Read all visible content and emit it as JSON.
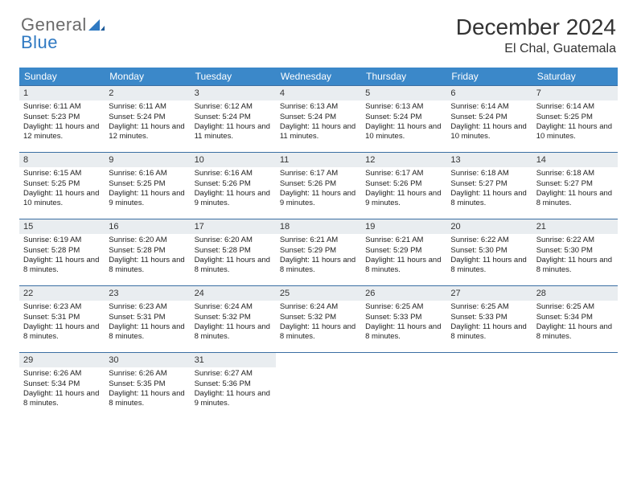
{
  "logo": {
    "line1": "General",
    "line2": "Blue"
  },
  "title": "December 2024",
  "location": "El Chal, Guatemala",
  "colors": {
    "header_bg": "#3b88c9",
    "header_text": "#ffffff",
    "daynum_bg": "#e9edf0",
    "week_border": "#3b6fa3",
    "text": "#222222",
    "logo_blue": "#2f79c2",
    "logo_gray": "#6b6b6b"
  },
  "days_of_week": [
    "Sunday",
    "Monday",
    "Tuesday",
    "Wednesday",
    "Thursday",
    "Friday",
    "Saturday"
  ],
  "weeks": [
    [
      {
        "n": "1",
        "sr": "6:11 AM",
        "ss": "5:23 PM",
        "dl": "11 hours and 12 minutes."
      },
      {
        "n": "2",
        "sr": "6:11 AM",
        "ss": "5:24 PM",
        "dl": "11 hours and 12 minutes."
      },
      {
        "n": "3",
        "sr": "6:12 AM",
        "ss": "5:24 PM",
        "dl": "11 hours and 11 minutes."
      },
      {
        "n": "4",
        "sr": "6:13 AM",
        "ss": "5:24 PM",
        "dl": "11 hours and 11 minutes."
      },
      {
        "n": "5",
        "sr": "6:13 AM",
        "ss": "5:24 PM",
        "dl": "11 hours and 10 minutes."
      },
      {
        "n": "6",
        "sr": "6:14 AM",
        "ss": "5:24 PM",
        "dl": "11 hours and 10 minutes."
      },
      {
        "n": "7",
        "sr": "6:14 AM",
        "ss": "5:25 PM",
        "dl": "11 hours and 10 minutes."
      }
    ],
    [
      {
        "n": "8",
        "sr": "6:15 AM",
        "ss": "5:25 PM",
        "dl": "11 hours and 10 minutes."
      },
      {
        "n": "9",
        "sr": "6:16 AM",
        "ss": "5:25 PM",
        "dl": "11 hours and 9 minutes."
      },
      {
        "n": "10",
        "sr": "6:16 AM",
        "ss": "5:26 PM",
        "dl": "11 hours and 9 minutes."
      },
      {
        "n": "11",
        "sr": "6:17 AM",
        "ss": "5:26 PM",
        "dl": "11 hours and 9 minutes."
      },
      {
        "n": "12",
        "sr": "6:17 AM",
        "ss": "5:26 PM",
        "dl": "11 hours and 9 minutes."
      },
      {
        "n": "13",
        "sr": "6:18 AM",
        "ss": "5:27 PM",
        "dl": "11 hours and 8 minutes."
      },
      {
        "n": "14",
        "sr": "6:18 AM",
        "ss": "5:27 PM",
        "dl": "11 hours and 8 minutes."
      }
    ],
    [
      {
        "n": "15",
        "sr": "6:19 AM",
        "ss": "5:28 PM",
        "dl": "11 hours and 8 minutes."
      },
      {
        "n": "16",
        "sr": "6:20 AM",
        "ss": "5:28 PM",
        "dl": "11 hours and 8 minutes."
      },
      {
        "n": "17",
        "sr": "6:20 AM",
        "ss": "5:28 PM",
        "dl": "11 hours and 8 minutes."
      },
      {
        "n": "18",
        "sr": "6:21 AM",
        "ss": "5:29 PM",
        "dl": "11 hours and 8 minutes."
      },
      {
        "n": "19",
        "sr": "6:21 AM",
        "ss": "5:29 PM",
        "dl": "11 hours and 8 minutes."
      },
      {
        "n": "20",
        "sr": "6:22 AM",
        "ss": "5:30 PM",
        "dl": "11 hours and 8 minutes."
      },
      {
        "n": "21",
        "sr": "6:22 AM",
        "ss": "5:30 PM",
        "dl": "11 hours and 8 minutes."
      }
    ],
    [
      {
        "n": "22",
        "sr": "6:23 AM",
        "ss": "5:31 PM",
        "dl": "11 hours and 8 minutes."
      },
      {
        "n": "23",
        "sr": "6:23 AM",
        "ss": "5:31 PM",
        "dl": "11 hours and 8 minutes."
      },
      {
        "n": "24",
        "sr": "6:24 AM",
        "ss": "5:32 PM",
        "dl": "11 hours and 8 minutes."
      },
      {
        "n": "25",
        "sr": "6:24 AM",
        "ss": "5:32 PM",
        "dl": "11 hours and 8 minutes."
      },
      {
        "n": "26",
        "sr": "6:25 AM",
        "ss": "5:33 PM",
        "dl": "11 hours and 8 minutes."
      },
      {
        "n": "27",
        "sr": "6:25 AM",
        "ss": "5:33 PM",
        "dl": "11 hours and 8 minutes."
      },
      {
        "n": "28",
        "sr": "6:25 AM",
        "ss": "5:34 PM",
        "dl": "11 hours and 8 minutes."
      }
    ],
    [
      {
        "n": "29",
        "sr": "6:26 AM",
        "ss": "5:34 PM",
        "dl": "11 hours and 8 minutes."
      },
      {
        "n": "30",
        "sr": "6:26 AM",
        "ss": "5:35 PM",
        "dl": "11 hours and 8 minutes."
      },
      {
        "n": "31",
        "sr": "6:27 AM",
        "ss": "5:36 PM",
        "dl": "11 hours and 9 minutes."
      },
      null,
      null,
      null,
      null
    ]
  ],
  "labels": {
    "sunrise": "Sunrise:",
    "sunset": "Sunset:",
    "daylight": "Daylight:"
  }
}
